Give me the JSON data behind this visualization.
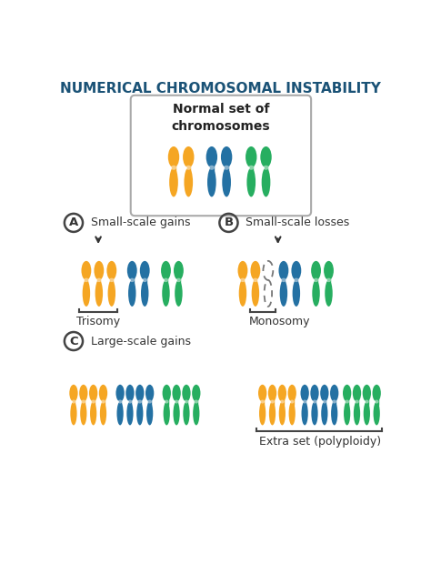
{
  "title": "NUMERICAL CHROMOSOMAL INSTABILITY",
  "title_color": "#1a5276",
  "bg_color": "#ffffff",
  "orange": "#F5A623",
  "blue": "#2471A3",
  "green": "#27AE60",
  "normal_label": "Normal set of\nchromosomes",
  "label_A": "A",
  "label_B": "B",
  "label_C": "C",
  "text_A": "Small-scale gains",
  "text_B": "Small-scale losses",
  "text_C": "Large-scale gains",
  "trisomy_label": "Trisomy",
  "monosomy_label": "Monosomy",
  "polyploidy_label": "Extra set (polyploidy)"
}
